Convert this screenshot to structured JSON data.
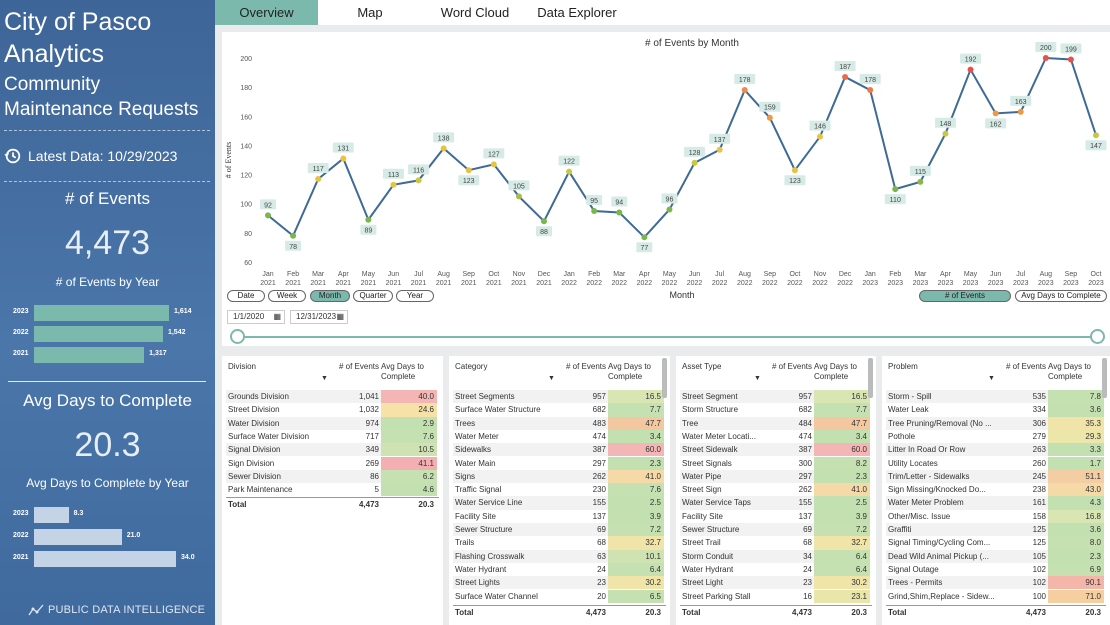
{
  "sidebar": {
    "title1": "City of Pasco",
    "title2": "Analytics",
    "subtitle": "Community Maintenance Requests",
    "latest": "Latest Data: 10/29/2023",
    "events_header": "# of Events",
    "events_total": "4,473",
    "events_by_year_label": "# of Events by Year",
    "events_by_year": [
      {
        "year": "2023",
        "label": "1,614",
        "value": 1614
      },
      {
        "year": "2022",
        "label": "1,542",
        "value": 1542
      },
      {
        "year": "2021",
        "label": "1,317",
        "value": 1317
      }
    ],
    "avg_header": "Avg Days to Complete",
    "avg_total": "20.3",
    "avg_by_year_label": "Avg Days to Complete by Year",
    "avg_by_year": [
      {
        "year": "2023",
        "label": "8.3",
        "value": 8.3
      },
      {
        "year": "2022",
        "label": "21.0",
        "value": 21.0
      },
      {
        "year": "2021",
        "label": "34.0",
        "value": 34.0
      }
    ],
    "brand": "PUBLIC DATA INTELLIGENCE",
    "colors": {
      "events_bar": "#7cb9ad",
      "avg_bar": "#c5d3e6"
    }
  },
  "tabs": [
    "Overview",
    "Map",
    "Word Cloud",
    "Data Explorer"
  ],
  "chart_data": {
    "type": "line",
    "title": "# of Events by Month",
    "xlabel": "Month",
    "ylabel": "# of Events",
    "ylim": [
      60,
      200
    ],
    "yticks": [
      60,
      80,
      100,
      120,
      140,
      160,
      180,
      200
    ],
    "categories": [
      "Jan 2021",
      "Feb 2021",
      "Mar 2021",
      "Apr 2021",
      "May 2021",
      "Jun 2021",
      "Jul 2021",
      "Aug 2021",
      "Sep 2021",
      "Oct 2021",
      "Nov 2021",
      "Dec 2021",
      "Jan 2022",
      "Feb 2022",
      "Mar 2022",
      "Apr 2022",
      "May 2022",
      "Jun 2022",
      "Jul 2022",
      "Aug 2022",
      "Sep 2022",
      "Oct 2022",
      "Nov 2022",
      "Dec 2022",
      "Jan 2023",
      "Feb 2023",
      "Mar 2023",
      "Apr 2023",
      "May 2023",
      "Jun 2023",
      "Jul 2023",
      "Aug 2023",
      "Sep 2023",
      "Oct 2023"
    ],
    "values": [
      92,
      78,
      117,
      131,
      89,
      113,
      116,
      138,
      123,
      127,
      105,
      88,
      122,
      95,
      94,
      77,
      96,
      128,
      137,
      178,
      159,
      123,
      146,
      187,
      178,
      110,
      115,
      148,
      192,
      162,
      163,
      200,
      199,
      147
    ],
    "labels": [
      "92",
      "78",
      "117",
      "131",
      "89",
      "113",
      "116",
      "138",
      "123",
      "127",
      "105",
      "88",
      "122",
      "95",
      "94",
      "77",
      "96",
      "128",
      "137",
      "178",
      "159",
      "123",
      "146",
      "187",
      "178",
      "110",
      "115",
      "148",
      "192",
      "162",
      "163",
      "200",
      "199",
      "147"
    ],
    "marker_colors": [
      "#7ab648",
      "#7ab648",
      "#e6c341",
      "#f0c040",
      "#7ab648",
      "#e6c341",
      "#c9c83e",
      "#e6c341",
      "#e6c341",
      "#e6c341",
      "#a8bd45",
      "#7ab648",
      "#c9c83e",
      "#7ab648",
      "#7ab648",
      "#7ab648",
      "#7ab648",
      "#c9c83e",
      "#e6c341",
      "#ee8a4a",
      "#ef9a40",
      "#e6c341",
      "#e6c341",
      "#ea6a4a",
      "#ee7a48",
      "#7ab648",
      "#8ab848",
      "#c9c83e",
      "#e8504a",
      "#ef9a40",
      "#ef9a40",
      "#e8504a",
      "#e8504a",
      "#c9c83e"
    ],
    "line_color": "#3e6a96"
  },
  "chart_controls": {
    "granularity": [
      "Date",
      "Week",
      "Month",
      "Quarter",
      "Year"
    ],
    "selected": "Month",
    "measures": [
      "# of Events",
      "Avg Days to Complete"
    ],
    "date_from": "1/1/2020",
    "date_to": "12/31/2023"
  },
  "tables": [
    {
      "headers": [
        "Division",
        "# of Events",
        "Avg Days to Complete"
      ],
      "rows": [
        [
          "Grounds Division",
          "1,041",
          "40.0",
          "#f4b6b4"
        ],
        [
          "Street Division",
          "1,032",
          "24.6",
          "#f6e2a8"
        ],
        [
          "Water Division",
          "974",
          "2.9",
          "#c3e0b0"
        ],
        [
          "Surface Water Division",
          "717",
          "7.6",
          "#c6e1b1"
        ],
        [
          "Signal Division",
          "349",
          "10.5",
          "#cfe3b2"
        ],
        [
          "Sign Division",
          "269",
          "41.1",
          "#f4b0b0"
        ],
        [
          "Sewer Division",
          "86",
          "6.2",
          "#c6e1b1"
        ],
        [
          "Park Maintenance",
          "5",
          "4.6",
          "#c3e0b0"
        ]
      ],
      "total": [
        "Total",
        "4,473",
        "20.3"
      ]
    },
    {
      "headers": [
        "Category",
        "# of Events",
        "Avg Days to Complete"
      ],
      "rows": [
        [
          "Street Segments",
          "957",
          "16.5",
          "#d9e6b4"
        ],
        [
          "Surface Water Structure",
          "682",
          "7.7",
          "#c6e1b1"
        ],
        [
          "Trees",
          "483",
          "47.7",
          "#f3c8a0"
        ],
        [
          "Water Meter",
          "474",
          "3.4",
          "#c3e0b0"
        ],
        [
          "Sidewalks",
          "387",
          "60.0",
          "#f4b6b4"
        ],
        [
          "Water Main",
          "297",
          "2.3",
          "#c3e0b0"
        ],
        [
          "Signs",
          "262",
          "41.0",
          "#f5d9a6"
        ],
        [
          "Traffic Signal",
          "230",
          "7.6",
          "#c6e1b1"
        ],
        [
          "Water Service Line",
          "155",
          "2.5",
          "#c3e0b0"
        ],
        [
          "Facility Site",
          "137",
          "3.9",
          "#c3e0b0"
        ],
        [
          "Sewer Structure",
          "69",
          "7.2",
          "#c6e1b1"
        ],
        [
          "Trails",
          "68",
          "32.7",
          "#f0e4a8"
        ],
        [
          "Flashing Crosswalk",
          "63",
          "10.1",
          "#cfe3b2"
        ],
        [
          "Water Hydrant",
          "24",
          "6.4",
          "#c6e1b1"
        ],
        [
          "Street Lights",
          "23",
          "30.2",
          "#f0e4a8"
        ],
        [
          "Surface Water Channel",
          "20",
          "6.5",
          "#c6e1b1"
        ]
      ],
      "total": [
        "Total",
        "4,473",
        "20.3"
      ]
    },
    {
      "headers": [
        "Asset Type",
        "# of Events",
        "Avg Days to Complete"
      ],
      "rows": [
        [
          "Street Segment",
          "957",
          "16.5",
          "#d9e6b4"
        ],
        [
          "Storm Structure",
          "682",
          "7.7",
          "#c6e1b1"
        ],
        [
          "Tree",
          "484",
          "47.7",
          "#f3c8a0"
        ],
        [
          "Water Meter Locati...",
          "474",
          "3.4",
          "#c3e0b0"
        ],
        [
          "Street Sidewalk",
          "387",
          "60.0",
          "#f4b6b4"
        ],
        [
          "Street Signals",
          "300",
          "8.2",
          "#c6e1b1"
        ],
        [
          "Water Pipe",
          "297",
          "2.3",
          "#c3e0b0"
        ],
        [
          "Street Sign",
          "262",
          "41.0",
          "#f5d9a6"
        ],
        [
          "Water Service Taps",
          "155",
          "2.5",
          "#c3e0b0"
        ],
        [
          "Facility Site",
          "137",
          "3.9",
          "#c3e0b0"
        ],
        [
          "Sewer Structure",
          "69",
          "7.2",
          "#c6e1b1"
        ],
        [
          "Street Trail",
          "68",
          "32.7",
          "#f0e4a8"
        ],
        [
          "Storm Conduit",
          "34",
          "6.4",
          "#c6e1b1"
        ],
        [
          "Water Hydrant",
          "24",
          "6.4",
          "#c6e1b1"
        ],
        [
          "Street Light",
          "23",
          "30.2",
          "#f0e4a8"
        ],
        [
          "Street Parking Stall",
          "16",
          "23.1",
          "#e8e6aa"
        ]
      ],
      "total": [
        "Total",
        "4,473",
        "20.3"
      ]
    },
    {
      "headers": [
        "Problem",
        "# of Events",
        "Avg Days to Complete"
      ],
      "rows": [
        [
          "Storm - Spill",
          "535",
          "7.8",
          "#c6e1b1"
        ],
        [
          "Water Leak",
          "334",
          "3.6",
          "#c3e0b0"
        ],
        [
          "Tree Pruning/Removal (No ...",
          "306",
          "35.3",
          "#f0e4a8"
        ],
        [
          "Pothole",
          "279",
          "29.3",
          "#ece6aa"
        ],
        [
          "Litter In Road Or Row",
          "263",
          "3.3",
          "#c3e0b0"
        ],
        [
          "Utility Locates",
          "260",
          "1.7",
          "#c3e0b0"
        ],
        [
          "Trim/Letter - Sidewalks",
          "245",
          "51.1",
          "#f3cda4"
        ],
        [
          "Sign Missing/Knocked Do...",
          "238",
          "43.0",
          "#f5d9a6"
        ],
        [
          "Water Meter Problem",
          "161",
          "4.3",
          "#c3e0b0"
        ],
        [
          "Other/Misc. Issue",
          "158",
          "16.8",
          "#d9e6b4"
        ],
        [
          "Graffiti",
          "125",
          "3.6",
          "#c3e0b0"
        ],
        [
          "Signal Timing/Cycling Com...",
          "125",
          "8.0",
          "#c6e1b1"
        ],
        [
          "Dead Wild Animal Pickup (...",
          "105",
          "2.3",
          "#c3e0b0"
        ],
        [
          "Signal Outage",
          "102",
          "6.9",
          "#c6e1b1"
        ],
        [
          "Trees - Permits",
          "102",
          "90.1",
          "#f4b6a8"
        ],
        [
          "Grind,Shim,Replace - Sidew...",
          "100",
          "71.0",
          "#f5cfa0"
        ]
      ],
      "total": [
        "Total",
        "4,473",
        "20.3"
      ]
    }
  ]
}
